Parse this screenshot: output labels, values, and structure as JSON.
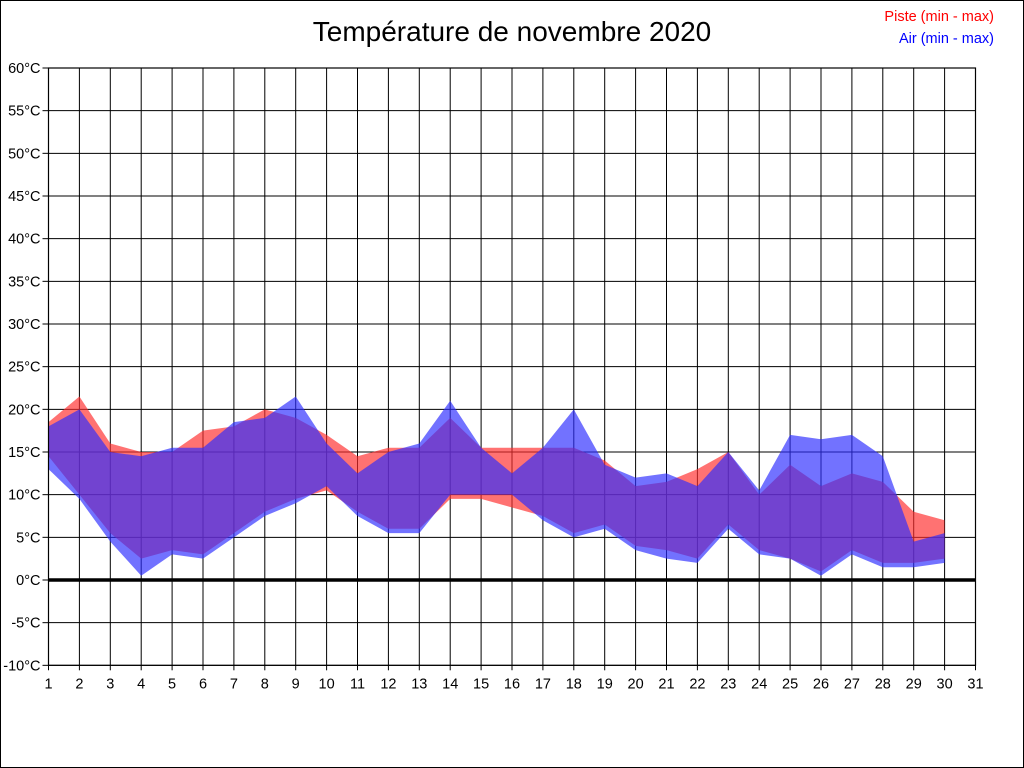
{
  "page": {
    "background": "#ffffff",
    "border_color": "#000000"
  },
  "header": {
    "title": "Température de novembre 2020"
  },
  "legend": [
    {
      "label": "Piste (min - max)",
      "color": "#ff0000",
      "series": "piste"
    },
    {
      "label": "Air (min - max)",
      "color": "#0000ff",
      "series": "air"
    }
  ],
  "chart_data": {
    "type": "area",
    "subtype": "min-max-band",
    "title": "Température de novembre 2020",
    "xlabel": "",
    "ylabel": "",
    "xlim": [
      1,
      31
    ],
    "ylim": [
      -10,
      60
    ],
    "x_ticks": [
      1,
      2,
      3,
      4,
      5,
      6,
      7,
      8,
      9,
      10,
      11,
      12,
      13,
      14,
      15,
      16,
      17,
      18,
      19,
      20,
      21,
      22,
      23,
      24,
      25,
      26,
      27,
      28,
      29,
      30,
      31
    ],
    "y_ticks": [
      60,
      55,
      50,
      45,
      40,
      35,
      30,
      25,
      20,
      15,
      10,
      5,
      0,
      -5,
      -10
    ],
    "y_tick_suffix": "°C",
    "grid": true,
    "zero_line_bold": true,
    "legend_position": "top-right",
    "days": [
      1,
      2,
      3,
      4,
      5,
      6,
      7,
      8,
      9,
      10,
      11,
      12,
      13,
      14,
      15,
      16,
      17,
      18,
      19,
      20,
      21,
      22,
      23,
      24,
      25,
      26,
      27,
      28,
      29,
      30
    ],
    "series": [
      {
        "name": "Piste (min - max)",
        "legend_color": "#ff0000",
        "fill_color": "#ff2d2d",
        "fill_opacity": 0.67,
        "min": [
          14.5,
          10,
          5.5,
          2.5,
          3.5,
          3,
          5.5,
          8,
          9.5,
          10.5,
          8,
          6,
          6,
          9.5,
          9.5,
          8.5,
          7.5,
          5.5,
          6.5,
          4,
          3.5,
          2.5,
          6.5,
          3.5,
          2.5,
          1,
          3.5,
          2,
          2,
          2.5
        ],
        "max": [
          18.5,
          21.5,
          16,
          15,
          15,
          17.5,
          18,
          20,
          19,
          17,
          14.5,
          15.5,
          15.5,
          19,
          15.5,
          15.5,
          15.5,
          15.5,
          14,
          11,
          11.5,
          13,
          15,
          10,
          13.5,
          11,
          12.5,
          11.5,
          8,
          7
        ]
      },
      {
        "name": "Air (min - max)",
        "legend_color": "#0000ff",
        "fill_color": "#2d2dff",
        "fill_opacity": 0.67,
        "min": [
          13,
          9.5,
          4.5,
          0.5,
          3,
          2.5,
          5,
          7.5,
          9,
          11,
          7.5,
          5.5,
          5.5,
          10,
          10,
          10,
          7,
          5,
          6,
          3.5,
          2.5,
          2,
          6,
          3,
          2.5,
          0.5,
          3,
          1.5,
          1.5,
          2
        ],
        "max": [
          18,
          20,
          15,
          14.5,
          15.5,
          15.5,
          18.5,
          19,
          21.5,
          16,
          12.5,
          15,
          16,
          21,
          15.5,
          12.5,
          15.5,
          20,
          13.5,
          12,
          12.5,
          11,
          15,
          10.5,
          17,
          16.5,
          17,
          14.5,
          4.5,
          5.5
        ]
      }
    ]
  }
}
